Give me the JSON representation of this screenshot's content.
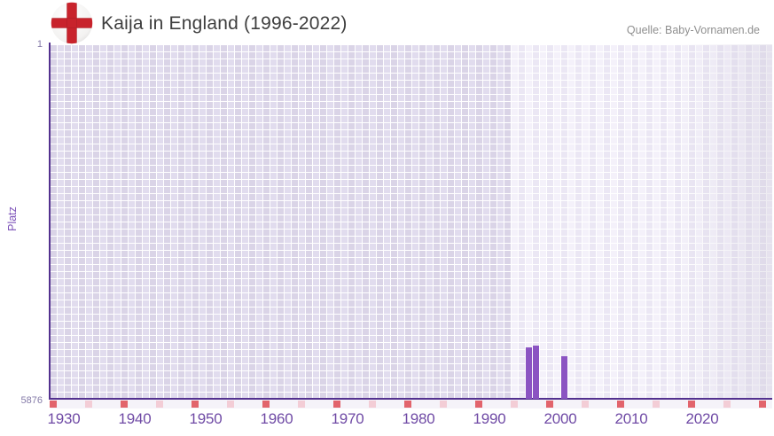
{
  "header": {
    "title": "Kaija in England (1996-2022)",
    "source": "Quelle: Baby-Vornamen.de"
  },
  "chart_data": {
    "type": "bar",
    "title": "Kaija in England (1996-2022)",
    "source": "Quelle: Baby-Vornamen.de",
    "ylabel": "Platz",
    "y_axis": {
      "min": 1,
      "max": 5876,
      "inverted": true,
      "top_tick_label": "1",
      "bottom_tick_label": "5876"
    },
    "x_axis": {
      "labeled_ticks": [
        1930,
        1940,
        1950,
        1960,
        1970,
        1980,
        1990,
        2000,
        2010,
        2020
      ],
      "minor_tick_step": 5,
      "range": [
        1929,
        2031
      ]
    },
    "bars": [
      {
        "year": 1996,
        "rank": 5030
      },
      {
        "year": 1997,
        "rank": 5000
      },
      {
        "year": 2001,
        "rank": 5165
      }
    ],
    "highlight_region": {
      "start_year": 1994,
      "end_year": 2031
    },
    "legend": "none",
    "grid": true,
    "colors": {
      "bar": "#8b54c2",
      "axis": "#53318f",
      "tick_decade": "#e2646c",
      "tick_minor": "#f3cdd6",
      "grid_old_a": "#dad4e7",
      "grid_old_b": "#e1dcee",
      "grid_new_a": "#f4f1fa",
      "grid_new_b": "#ebe7f4",
      "year_label": "#6f4aa5",
      "rank_label": "#847aa8",
      "ylabel": "#7b50b8",
      "title": "#3e3e3e",
      "source": "#8f8f8f",
      "flag_cross_red": "#c8232c",
      "flag_circle": "#f3f2f1"
    }
  }
}
